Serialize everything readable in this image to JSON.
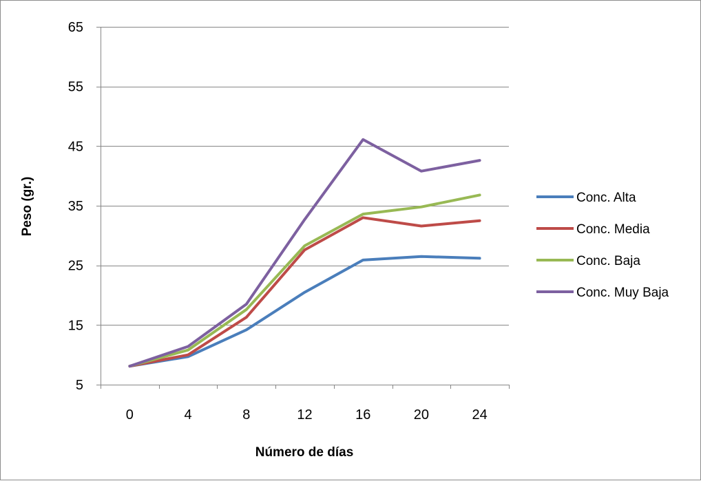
{
  "chart_data": {
    "type": "line",
    "title": "",
    "xlabel": "Número de días",
    "ylabel": "Peso (gr.)",
    "categories": [
      "0",
      "4",
      "8",
      "12",
      "16",
      "20",
      "24"
    ],
    "y_ticks": [
      "5",
      "15",
      "25",
      "35",
      "45",
      "55",
      "65"
    ],
    "ylim": [
      5,
      65
    ],
    "grid": "horizontal",
    "legend_position": "right",
    "series": [
      {
        "name": "Conc. Alta",
        "color": "#4a7ebb",
        "values": [
          8.1,
          9.7,
          14.2,
          20.5,
          25.9,
          26.5,
          26.2
        ]
      },
      {
        "name": "Conc. Media",
        "color": "#be4b48",
        "values": [
          8.1,
          10.0,
          16.3,
          27.6,
          33.0,
          31.6,
          32.5
        ]
      },
      {
        "name": "Conc. Baja",
        "color": "#98b954",
        "values": [
          8.1,
          10.8,
          17.6,
          28.3,
          33.6,
          34.8,
          36.8
        ]
      },
      {
        "name": "Conc. Muy Baja",
        "color": "#7d60a0",
        "values": [
          8.1,
          11.4,
          18.5,
          32.7,
          46.1,
          40.8,
          42.6
        ]
      }
    ]
  }
}
